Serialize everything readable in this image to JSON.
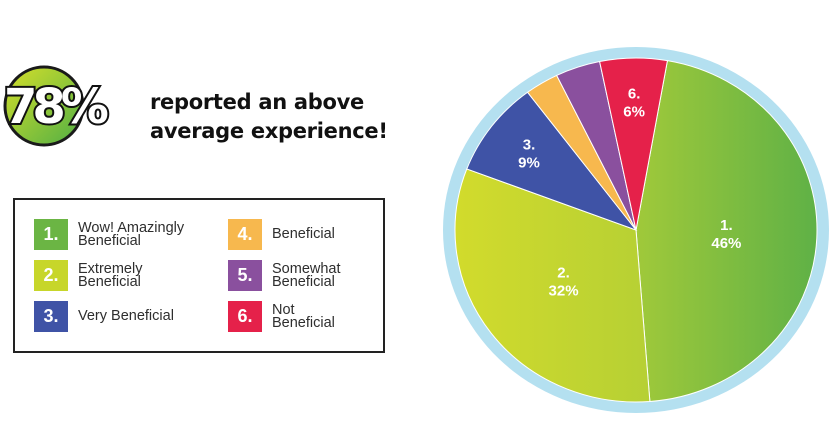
{
  "headline": {
    "stat": "78%",
    "line1": "reported an above",
    "line2": "average experience!"
  },
  "legend": [
    {
      "num": "1.",
      "label": "Wow! Amazingly Beneficial",
      "color": "#6bb544"
    },
    {
      "num": "2.",
      "label": "Extremely Beneficial",
      "color": "#c7d62a"
    },
    {
      "num": "3.",
      "label": "Very Beneficial",
      "color": "#3f53a6"
    },
    {
      "num": "4.",
      "label": "Beneficial",
      "color": "#f7b84e"
    },
    {
      "num": "5.",
      "label": "Somewhat Beneficial",
      "color": "#8a509e"
    },
    {
      "num": "6.",
      "label": "Not Beneficial",
      "color": "#e5214a"
    }
  ],
  "chart_data": {
    "type": "pie",
    "title": "",
    "slices": [
      {
        "num": "1.",
        "label": "Wow! Amazingly Beneficial",
        "value": 46,
        "display": "46%",
        "color": "#6bb544"
      },
      {
        "num": "2.",
        "label": "Extremely Beneficial",
        "value": 32,
        "display": "32%",
        "color": "#c7d62a"
      },
      {
        "num": "3.",
        "label": "Very Beneficial",
        "value": 9,
        "display": "9%",
        "color": "#3f53a6"
      },
      {
        "num": "4.",
        "label": "Beneficial",
        "value": 3,
        "display": "",
        "color": "#f7b84e"
      },
      {
        "num": "5.",
        "label": "Somewhat Beneficial",
        "value": 4,
        "display": "",
        "color": "#8a509e"
      },
      {
        "num": "6.",
        "label": "Not Beneficial",
        "value": 6,
        "display": "6%",
        "color": "#e5214a"
      }
    ],
    "ring_color": "#b4e0f0"
  }
}
